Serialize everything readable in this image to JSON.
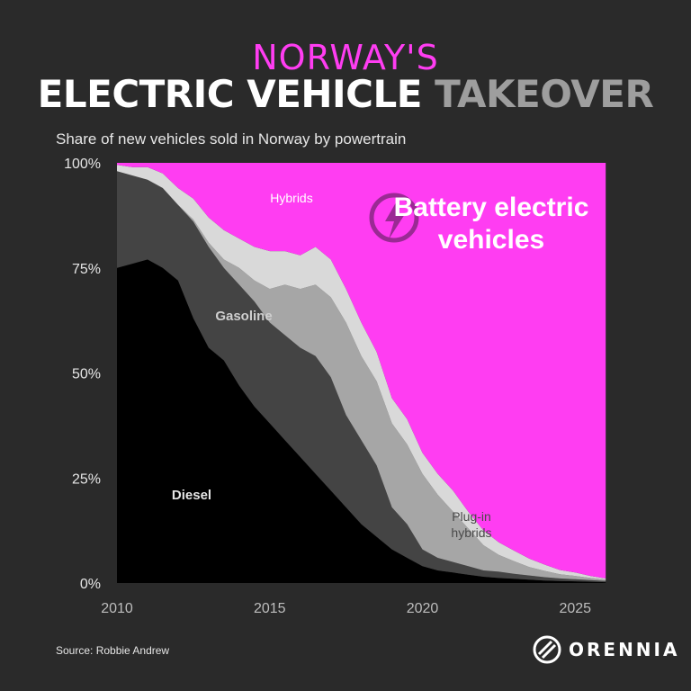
{
  "header": {
    "title_line1": "NORWAY'S",
    "title_line2_a": "ELECTRIC VEHICLE",
    "title_line2_b": "TAKEOVER",
    "subtitle": "Share of new vehicles sold in Norway by powertrain"
  },
  "footer": {
    "source": "Source: Robbie Andrew",
    "brand": "ORENNIA"
  },
  "colors": {
    "diesel": "#000000",
    "gasoline": "#444444",
    "plugin_hybrids": "#a6a6a6",
    "hybrids": "#d9d9d9",
    "battery_electric": "#ff3df2",
    "title_accent": "#ff3df2"
  },
  "chart_data": {
    "type": "area",
    "stacked": true,
    "x_unit": "year",
    "x": [
      2010.0,
      2010.5,
      2011.0,
      2011.5,
      2012.0,
      2012.5,
      2013.0,
      2013.5,
      2014.0,
      2014.5,
      2015.0,
      2015.5,
      2016.0,
      2016.5,
      2017.0,
      2017.5,
      2018.0,
      2018.5,
      2019.0,
      2019.5,
      2020.0,
      2020.5,
      2021.0,
      2021.5,
      2022.0,
      2022.5,
      2023.0,
      2023.5,
      2024.0,
      2024.5,
      2025.0,
      2025.5,
      2026.0
    ],
    "series": [
      {
        "name": "Diesel",
        "values": [
          75,
          76,
          77,
          75,
          72,
          63,
          56,
          53,
          47,
          42,
          38,
          34,
          30,
          26,
          22,
          18,
          14,
          11,
          8,
          6,
          4,
          3,
          2.5,
          2,
          1.5,
          1.2,
          1,
          0.8,
          0.6,
          0.5,
          0.4,
          0.3,
          0.2
        ]
      },
      {
        "name": "Gasoline",
        "values": [
          23,
          21,
          19,
          19,
          18,
          23,
          24,
          22,
          24,
          25,
          24,
          25,
          26,
          28,
          27,
          22,
          20,
          17,
          10,
          8,
          4,
          3,
          2.5,
          2,
          1.5,
          1.5,
          1.2,
          1,
          0.8,
          0.6,
          0.5,
          0.4,
          0.3
        ]
      },
      {
        "name": "Plug-in hybrids",
        "values": [
          0,
          0,
          0,
          0,
          0,
          0.5,
          1,
          2,
          4,
          5,
          8,
          12,
          14,
          17,
          19,
          22,
          20,
          20,
          20,
          19,
          18,
          15,
          12,
          9,
          6,
          4,
          3,
          2,
          1.5,
          1,
          0.8,
          0.5,
          0.3
        ]
      },
      {
        "name": "Hybrids",
        "values": [
          1.5,
          2,
          3,
          3.5,
          4,
          5,
          6,
          7,
          7,
          8,
          9,
          8,
          8,
          9,
          9,
          8,
          8,
          7,
          6,
          6,
          5,
          5,
          5,
          4,
          3.5,
          3,
          2.5,
          2,
          1.5,
          1,
          0.8,
          0.5,
          0.3
        ]
      },
      {
        "name": "Battery electric vehicles",
        "values": [
          0.5,
          1,
          1,
          2.5,
          6,
          8.5,
          13,
          16,
          18,
          20,
          21,
          21,
          22,
          20,
          23,
          30,
          38,
          45,
          56,
          61,
          69,
          74,
          78,
          83,
          87.5,
          90.3,
          92.3,
          94.2,
          95.6,
          96.9,
          97.5,
          98.3,
          98.9
        ]
      }
    ],
    "series_labels": [
      {
        "series": "Diesel",
        "text": "Diesel"
      },
      {
        "series": "Gasoline",
        "text": "Gasoline"
      },
      {
        "series": "Plug-in hybrids",
        "text": [
          "Plug-in",
          "hybrids"
        ]
      },
      {
        "series": "Hybrids",
        "text": "Hybrids"
      },
      {
        "series": "Battery electric vehicles",
        "text": [
          "Battery electric",
          "vehicles"
        ]
      }
    ],
    "xticks": [
      2010,
      2015,
      2020,
      2025
    ],
    "xlim": [
      2010.0,
      2026.2
    ],
    "ylim": [
      0,
      100
    ],
    "yticks": [
      0,
      25,
      50,
      75,
      100
    ],
    "ytick_labels": [
      "0%",
      "25%",
      "50%",
      "75%",
      "100%"
    ],
    "grid": false,
    "legend": "none"
  }
}
